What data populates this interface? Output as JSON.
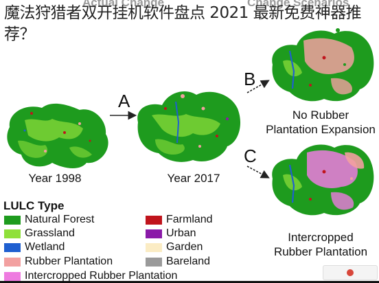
{
  "overlay": {
    "title": "魔法狩猎者双开挂机软件盘点 2021 最新免费神器推荐？"
  },
  "headers": {
    "left": "Actual Change",
    "right": "Change Scenarios"
  },
  "steps": {
    "a": "A",
    "b": "B",
    "c": "C"
  },
  "maps": {
    "year1998": "Year 1998",
    "year2017": "Year 2017",
    "scenario_b_line1": "No Rubber",
    "scenario_b_line2": "Plantation Expansion",
    "scenario_c_line1": "Intercropped",
    "scenario_c_line2": "Rubber Plantation"
  },
  "legend": {
    "title": "LULC Type",
    "items": [
      {
        "label": "Natural Forest",
        "color": "#1e9b1e"
      },
      {
        "label": "Grassland",
        "color": "#8fe03a"
      },
      {
        "label": "Wetland",
        "color": "#1f5fd0"
      },
      {
        "label": "Rubber Plantation",
        "color": "#f2a0a0"
      },
      {
        "label": "Intercropped Rubber Plantation",
        "color": "#ee7be0"
      },
      {
        "label": "Farmland",
        "color": "#c0141c"
      },
      {
        "label": "Urban",
        "color": "#8a1aa8"
      },
      {
        "label": "Garden",
        "color": "#fbecc4"
      },
      {
        "label": "Bareland",
        "color": "#9a9a9a"
      }
    ]
  },
  "colors": {
    "forest": "#1e9b1e",
    "forest_light": "#7cd436",
    "wetland": "#1f5fd0",
    "rubber": "#f2a0a0",
    "intercropped": "#ee7be0",
    "farmland": "#c0141c",
    "urban": "#8a1aa8"
  }
}
